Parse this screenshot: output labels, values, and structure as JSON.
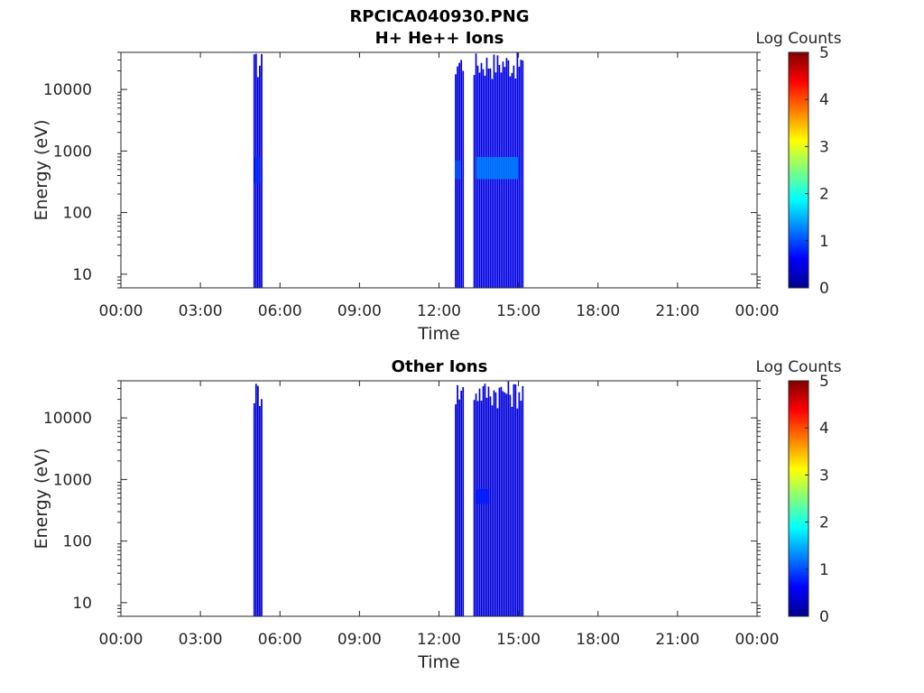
{
  "figure_title": "RPCICA040930.PNG",
  "chart_data": [
    {
      "type": "heatmap",
      "title": "H+ He++ Ions",
      "xlabel": "Time",
      "ylabel": "Energy (eV)",
      "x_ticks": [
        "00:00",
        "03:00",
        "06:00",
        "09:00",
        "12:00",
        "15:00",
        "18:00",
        "21:00",
        "00:00"
      ],
      "x_range_hours": [
        0,
        24
      ],
      "y_scale": "log",
      "y_ticks": [
        10,
        100,
        1000,
        10000
      ],
      "y_tick_labels": [
        "10",
        "100",
        "1000",
        "10000"
      ],
      "y_range": [
        6,
        40000
      ],
      "colorbar": {
        "label": "Log Counts",
        "range": [
          0,
          5
        ],
        "ticks": [
          "0",
          "1",
          "2",
          "3",
          "4",
          "5"
        ]
      },
      "data_intervals": [
        {
          "start_hour": 5.0,
          "end_hour": 5.35,
          "emin": 6,
          "emax": 40000,
          "level": 0.2
        },
        {
          "start_hour": 12.6,
          "end_hour": 12.95,
          "emin": 6,
          "emax": 40000,
          "level": 0.2
        },
        {
          "start_hour": 13.3,
          "end_hour": 15.2,
          "emin": 6,
          "emax": 40000,
          "level": 0.25
        }
      ],
      "enhancements": [
        {
          "start_hour": 13.4,
          "end_hour": 15.0,
          "emin": 350,
          "emax": 800,
          "level": 1.0
        },
        {
          "start_hour": 12.6,
          "end_hour": 12.8,
          "emin": 350,
          "emax": 700,
          "level": 0.8
        },
        {
          "start_hour": 5.05,
          "end_hour": 5.25,
          "emin": 300,
          "emax": 800,
          "level": 0.6
        }
      ]
    },
    {
      "type": "heatmap",
      "title": "Other Ions",
      "xlabel": "Time",
      "ylabel": "Energy (eV)",
      "x_ticks": [
        "00:00",
        "03:00",
        "06:00",
        "09:00",
        "12:00",
        "15:00",
        "18:00",
        "21:00",
        "00:00"
      ],
      "x_range_hours": [
        0,
        24
      ],
      "y_scale": "log",
      "y_ticks": [
        10,
        100,
        1000,
        10000
      ],
      "y_tick_labels": [
        "10",
        "100",
        "1000",
        "10000"
      ],
      "y_range": [
        6,
        40000
      ],
      "colorbar": {
        "label": "Log Counts",
        "range": [
          0,
          5
        ],
        "ticks": [
          "0",
          "1",
          "2",
          "3",
          "4",
          "5"
        ]
      },
      "data_intervals": [
        {
          "start_hour": 5.0,
          "end_hour": 5.35,
          "emin": 6,
          "emax": 40000,
          "level": 0.15
        },
        {
          "start_hour": 12.6,
          "end_hour": 12.95,
          "emin": 6,
          "emax": 40000,
          "level": 0.15
        },
        {
          "start_hour": 13.3,
          "end_hour": 15.2,
          "emin": 6,
          "emax": 40000,
          "level": 0.2
        }
      ],
      "enhancements": [
        {
          "start_hour": 13.4,
          "end_hour": 13.9,
          "emin": 400,
          "emax": 700,
          "level": 0.5
        }
      ]
    }
  ]
}
